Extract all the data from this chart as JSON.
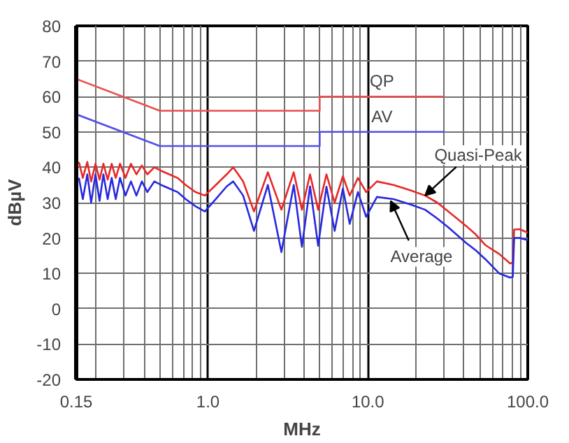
{
  "chart_data": {
    "type": "line",
    "xlabel": "MHz",
    "ylabel": "dBµV",
    "log": "x",
    "grid": true,
    "xlim": [
      0.15,
      100
    ],
    "xticks": [
      0.15,
      {
        "value": 1,
        "label": "1.0"
      },
      {
        "value": 10,
        "label": "10.0"
      },
      {
        "value": 100,
        "label": "100.0"
      }
    ],
    "ylim": [
      -20,
      80
    ],
    "yticks": [
      -20,
      -10,
      0,
      10,
      20,
      30,
      40,
      50,
      60,
      70,
      80
    ],
    "series": [
      {
        "name": "QP",
        "color": "#e85050",
        "x": [
          0.15,
          0.5,
          0.5,
          5,
          5,
          30
        ],
        "values": [
          65,
          56,
          56,
          56,
          60,
          60
        ]
      },
      {
        "name": "AV",
        "color": "#5050e8",
        "x": [
          0.15,
          0.5,
          0.5,
          5,
          5,
          30
        ],
        "values": [
          55,
          46,
          46,
          46,
          50,
          50
        ]
      },
      {
        "color": "#e82828",
        "x": [
          0.156,
          0.165,
          0.176,
          0.186,
          0.198,
          0.21,
          0.222,
          0.236,
          0.25,
          0.265,
          0.282,
          0.305,
          0.33,
          0.357,
          0.386,
          0.418,
          0.462,
          0.51,
          0.573,
          0.645,
          0.726,
          0.834,
          0.957,
          1.12,
          1.31,
          1.44,
          1.66,
          1.94,
          2.37,
          2.88,
          3.44,
          3.87,
          4.35,
          4.89,
          5.51,
          6.2,
          6.98,
          7.7,
          8.67,
          9.76,
          11.4,
          14.5,
          18.4,
          22.8,
          27.2,
          31.9,
          41.2,
          47.3,
          54.3,
          66.2,
          77.5,
          80.6,
          82.2,
          88.9,
          100
        ],
        "values": [
          41.5,
          37,
          41.5,
          36,
          41,
          36.5,
          41,
          36.5,
          41,
          37,
          41,
          37,
          41,
          38,
          40.5,
          38,
          40,
          39,
          38,
          37,
          35,
          33,
          32,
          35,
          38,
          40,
          36,
          27.5,
          38.6,
          28,
          38.6,
          28,
          38,
          28,
          38,
          30,
          37.5,
          32,
          37,
          33,
          36,
          35,
          33.5,
          32,
          30,
          27.5,
          23.4,
          21,
          18,
          15.5,
          12.8,
          13,
          22.4,
          22.5,
          21.5
        ]
      },
      {
        "color": "#2828e0",
        "x": [
          0.156,
          0.165,
          0.176,
          0.186,
          0.198,
          0.21,
          0.222,
          0.236,
          0.25,
          0.265,
          0.282,
          0.305,
          0.33,
          0.357,
          0.386,
          0.418,
          0.462,
          0.51,
          0.573,
          0.645,
          0.726,
          0.834,
          0.957,
          1.12,
          1.31,
          1.44,
          1.66,
          1.94,
          2.37,
          2.88,
          3.44,
          3.87,
          4.35,
          4.89,
          5.51,
          6.2,
          6.98,
          7.7,
          8.67,
          9.76,
          11.4,
          14.5,
          18.4,
          22.8,
          27.2,
          31.9,
          41.2,
          47.3,
          54.3,
          66.2,
          77.5,
          80.6,
          82.2,
          88.9,
          100
        ],
        "values": [
          37,
          31,
          38,
          30,
          38,
          30.5,
          38,
          31,
          37,
          31,
          37,
          32,
          36,
          32,
          36,
          33,
          36,
          35,
          34,
          33,
          31,
          29,
          27.5,
          31,
          34.6,
          36,
          32,
          22,
          35,
          16,
          35,
          17.5,
          34.6,
          17.8,
          34.5,
          22,
          34,
          24,
          33,
          26,
          31.6,
          31,
          29.5,
          28,
          25.5,
          23,
          18.6,
          16.5,
          14,
          10,
          8.8,
          9,
          20,
          20,
          19.4
        ]
      }
    ],
    "annotations": [
      {
        "text": "Quasi-Peak",
        "x": 22.8,
        "y": 32
      },
      {
        "text": "Average",
        "x": 13.9,
        "y": 30.5
      }
    ]
  }
}
